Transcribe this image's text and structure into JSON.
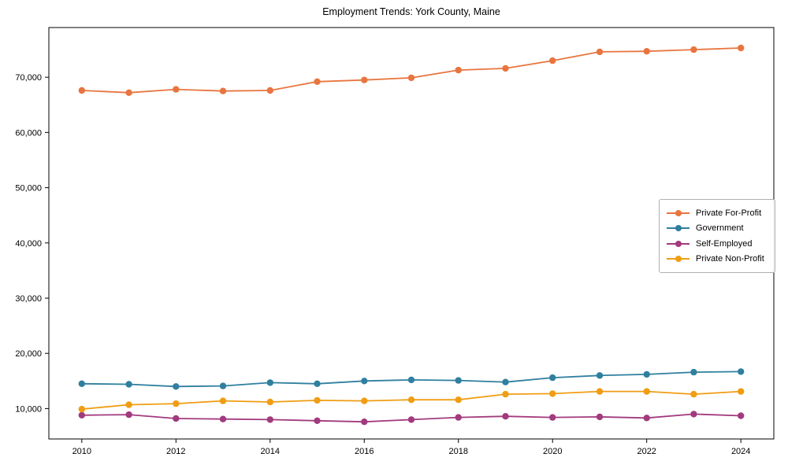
{
  "chart_data": {
    "type": "line",
    "title": "Employment Trends: York County, Maine",
    "xlabel": "",
    "ylabel": "",
    "grid": false,
    "legend_position": "center right",
    "x": [
      2010,
      2011,
      2012,
      2013,
      2014,
      2015,
      2016,
      2017,
      2018,
      2019,
      2020,
      2021,
      2022,
      2023,
      2024
    ],
    "series": [
      {
        "name": "Private For-Profit",
        "color": "#e8753f",
        "values": [
          67600,
          67200,
          67800,
          67500,
          67600,
          69200,
          69500,
          69900,
          71300,
          71600,
          73000,
          74600,
          74700,
          75000,
          75300
        ]
      },
      {
        "name": "Government",
        "color": "#2f7f9f",
        "values": [
          14500,
          14400,
          14000,
          14100,
          14700,
          14500,
          15000,
          15200,
          15100,
          14800,
          15600,
          16000,
          16200,
          16600,
          16700
        ]
      },
      {
        "name": "Self-Employed",
        "color": "#a23a7e",
        "values": [
          8800,
          8900,
          8200,
          8100,
          8000,
          7800,
          7600,
          8000,
          8400,
          8600,
          8400,
          8500,
          8300,
          9000,
          8700
        ]
      },
      {
        "name": "Private Non-Profit",
        "color": "#f09d13",
        "values": [
          9900,
          10700,
          10900,
          11400,
          11200,
          11500,
          11400,
          11600,
          11600,
          12600,
          12700,
          13100,
          13100,
          12600,
          13100
        ]
      }
    ],
    "xlim": [
      2009.3,
      2024.7
    ],
    "ylim": [
      4500,
      79000
    ],
    "x_ticks": [
      2010,
      2012,
      2014,
      2016,
      2018,
      2020,
      2022,
      2024
    ],
    "y_ticks": [
      {
        "value": 10000,
        "label": "10,000"
      },
      {
        "value": 20000,
        "label": "20,000"
      },
      {
        "value": 30000,
        "label": "30,000"
      },
      {
        "value": 40000,
        "label": "40,000"
      },
      {
        "value": 50000,
        "label": "50,000"
      },
      {
        "value": 60000,
        "label": "60,000"
      },
      {
        "value": 70000,
        "label": "70,000"
      }
    ],
    "marker": "circle",
    "marker_radius": 4.2,
    "line_width": 1.8,
    "axis_color": "#000000"
  }
}
